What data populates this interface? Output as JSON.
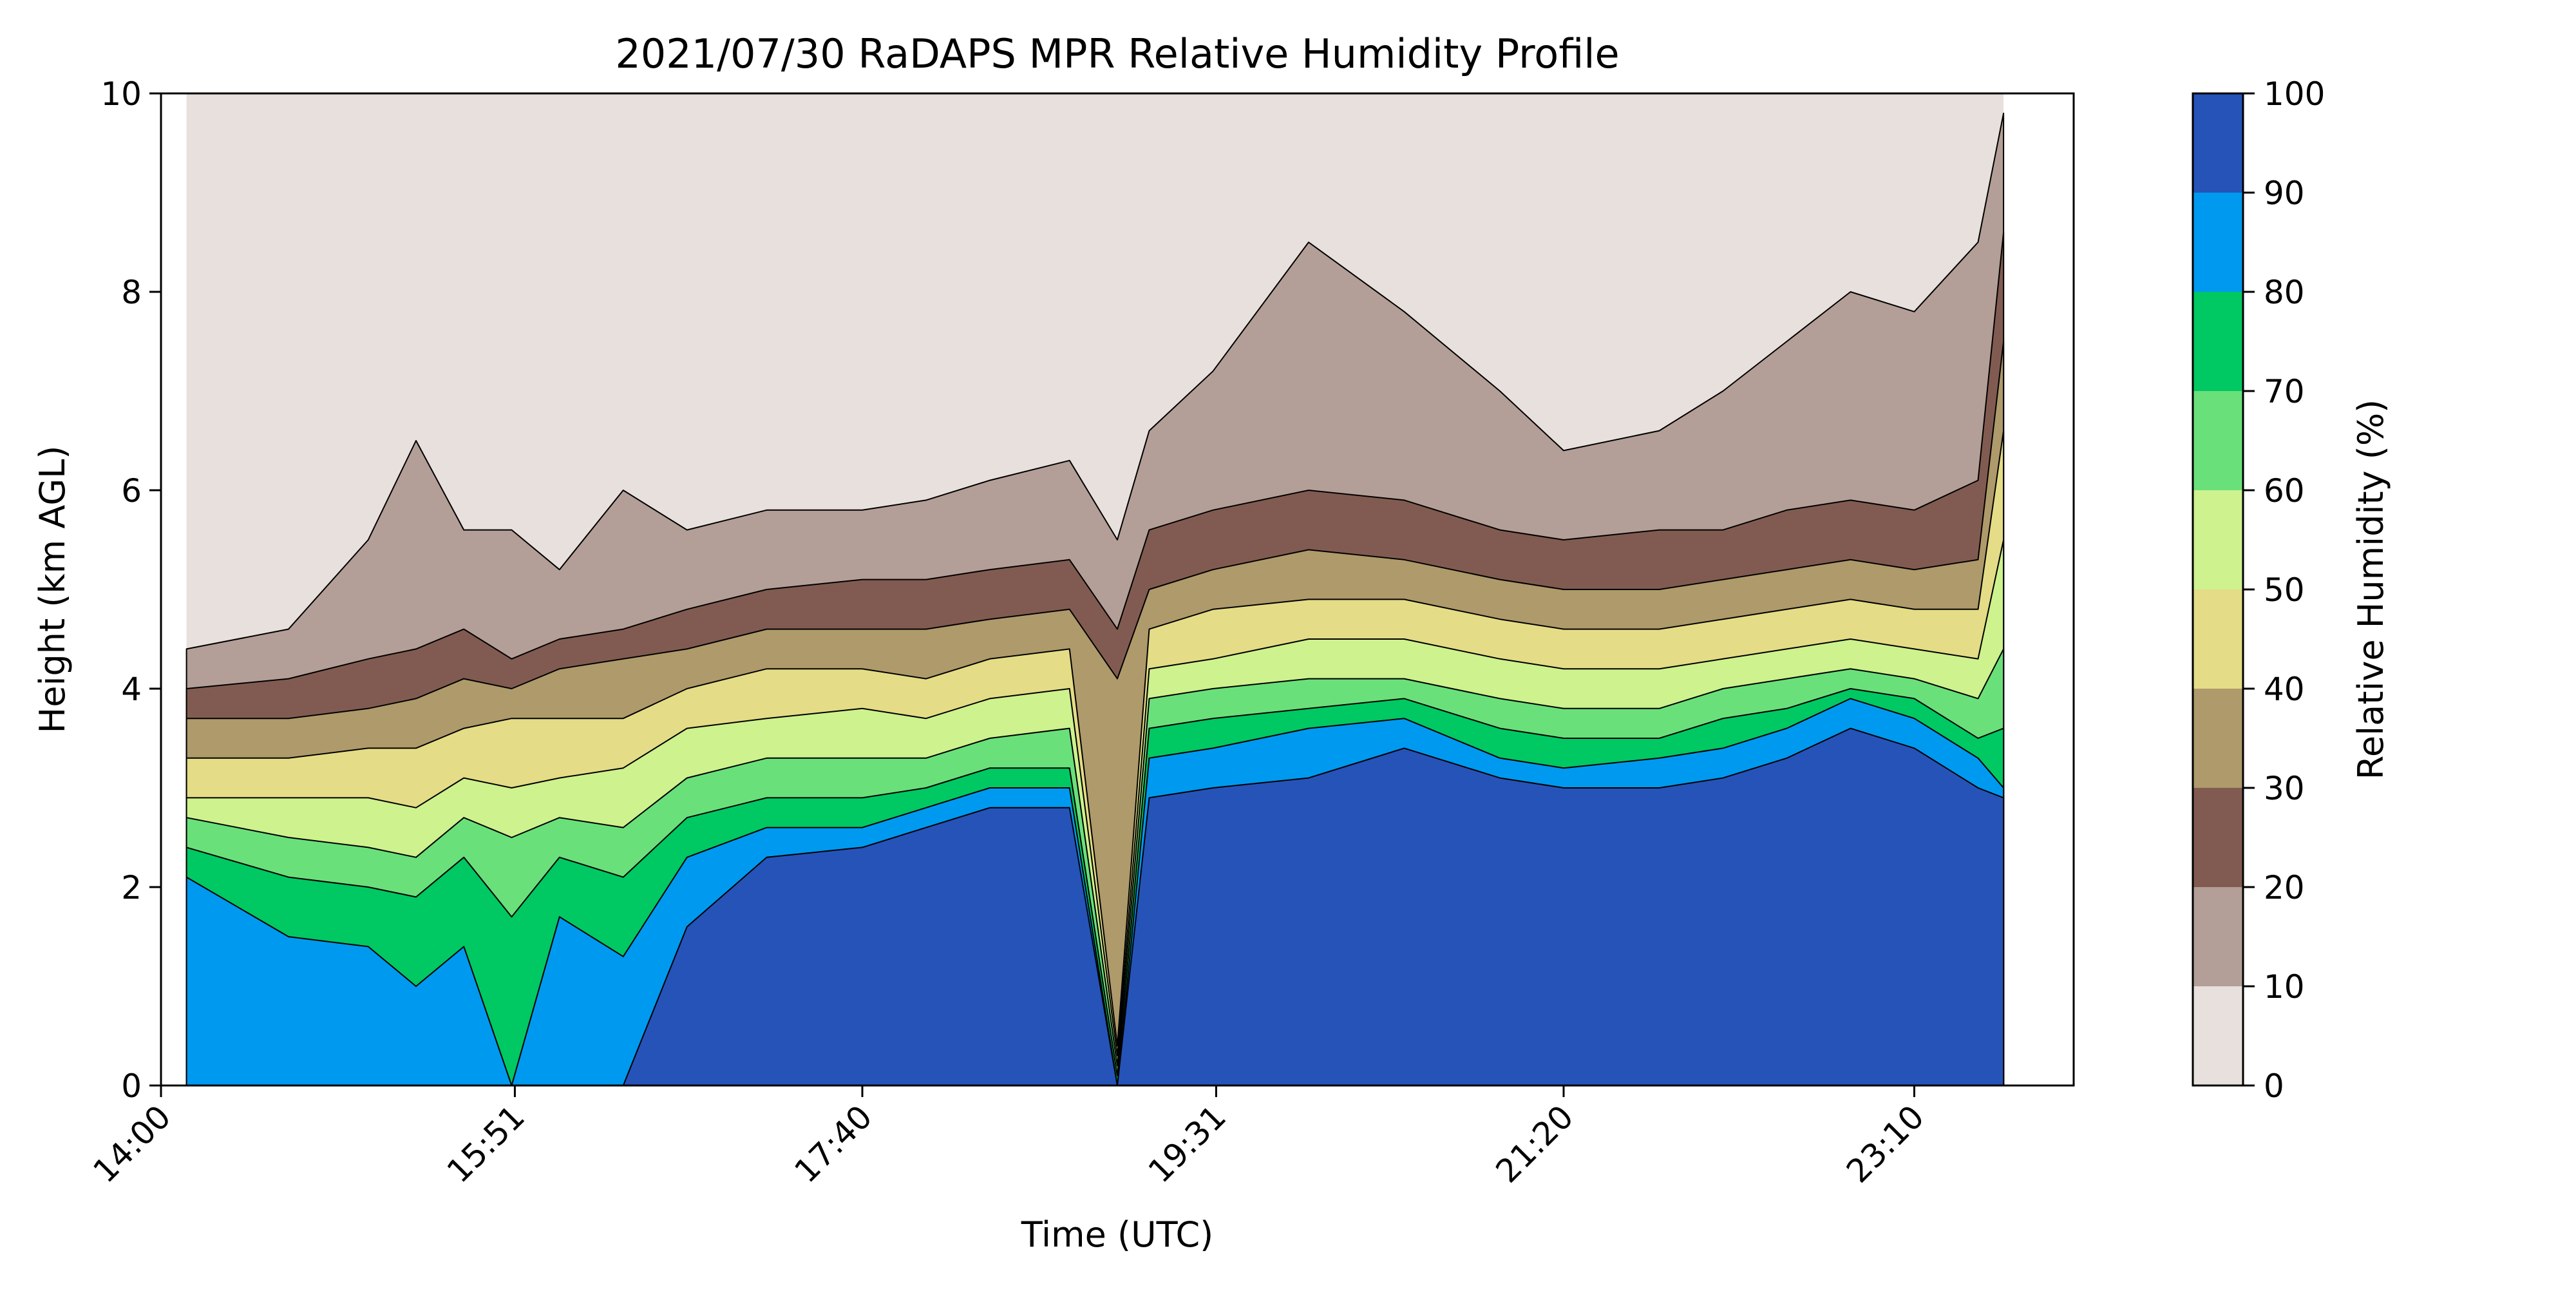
{
  "chart_data": {
    "type": "heatmap",
    "title": "2021/07/30 RaDAPS MPR Relative Humidity Profile",
    "xlabel": "Time (UTC)",
    "ylabel": "Height (km AGL)",
    "colorbar_label": "Relative Humidity (%)",
    "x_ticks": [
      "14:00",
      "15:51",
      "17:40",
      "19:31",
      "21:20",
      "23:10"
    ],
    "y_ticks": [
      "0",
      "2",
      "4",
      "6",
      "8",
      "10"
    ],
    "colorbar_ticks": [
      "0",
      "10",
      "20",
      "30",
      "40",
      "50",
      "60",
      "70",
      "80",
      "90",
      "100"
    ],
    "x_range": [
      "14:00",
      "24:00"
    ],
    "ylim": [
      0,
      10
    ],
    "clim": [
      0,
      100
    ],
    "levels": [
      0,
      10,
      20,
      30,
      40,
      50,
      60,
      70,
      80,
      90,
      100
    ],
    "level_colors": [
      "#e7e0dd",
      "#b39f97",
      "#815b51",
      "#ae9a6a",
      "#e4dc87",
      "#cdf28e",
      "#6ae07a",
      "#00c862",
      "#0099f0",
      "#2553b8"
    ],
    "contour_line_color": "#000000",
    "data_start_time": "14:08",
    "data_end_time": "23:38",
    "boundary_times": [
      "14:08",
      "14:40",
      "15:05",
      "15:20",
      "15:35",
      "15:50",
      "16:05",
      "16:25",
      "16:45",
      "17:10",
      "17:40",
      "18:00",
      "18:20",
      "18:45",
      "19:00",
      "19:10",
      "19:30",
      "20:00",
      "20:30",
      "21:00",
      "21:20",
      "21:50",
      "22:10",
      "22:30",
      "22:50",
      "23:10",
      "23:30",
      "23:38"
    ],
    "level_top_heights_km": {
      "90": [
        0.0,
        0.0,
        0.0,
        0.0,
        0.0,
        0.0,
        0.0,
        0.0,
        1.6,
        2.3,
        2.4,
        2.6,
        2.8,
        2.8,
        0.0,
        2.9,
        3.0,
        3.1,
        3.4,
        3.1,
        3.0,
        3.0,
        3.1,
        3.3,
        3.6,
        3.4,
        3.0,
        2.9
      ],
      "80": [
        2.1,
        1.5,
        1.4,
        1.0,
        1.4,
        0.0,
        1.7,
        1.3,
        2.3,
        2.6,
        2.6,
        2.8,
        3.0,
        3.0,
        0.0,
        3.3,
        3.4,
        3.6,
        3.7,
        3.3,
        3.2,
        3.3,
        3.4,
        3.6,
        3.9,
        3.7,
        3.3,
        3.0
      ],
      "70": [
        2.4,
        2.1,
        2.0,
        1.9,
        2.3,
        1.7,
        2.3,
        2.1,
        2.7,
        2.9,
        2.9,
        3.0,
        3.2,
        3.2,
        0.1,
        3.6,
        3.7,
        3.8,
        3.9,
        3.6,
        3.5,
        3.5,
        3.7,
        3.8,
        4.0,
        3.9,
        3.5,
        3.6
      ],
      "60": [
        2.7,
        2.5,
        2.4,
        2.3,
        2.7,
        2.5,
        2.7,
        2.6,
        3.1,
        3.3,
        3.3,
        3.3,
        3.5,
        3.6,
        0.2,
        3.9,
        4.0,
        4.1,
        4.1,
        3.9,
        3.8,
        3.8,
        4.0,
        4.1,
        4.2,
        4.1,
        3.9,
        4.4
      ],
      "50": [
        2.9,
        2.9,
        2.9,
        2.8,
        3.1,
        3.0,
        3.1,
        3.2,
        3.6,
        3.7,
        3.8,
        3.7,
        3.9,
        4.0,
        0.3,
        4.2,
        4.3,
        4.5,
        4.5,
        4.3,
        4.2,
        4.2,
        4.3,
        4.4,
        4.5,
        4.4,
        4.3,
        5.5
      ],
      "40": [
        3.3,
        3.3,
        3.4,
        3.4,
        3.6,
        3.7,
        3.7,
        3.7,
        4.0,
        4.2,
        4.2,
        4.1,
        4.3,
        4.4,
        0.4,
        4.6,
        4.8,
        4.9,
        4.9,
        4.7,
        4.6,
        4.6,
        4.7,
        4.8,
        4.9,
        4.8,
        4.8,
        6.6
      ],
      "30": [
        3.7,
        3.7,
        3.8,
        3.9,
        4.1,
        4.0,
        4.2,
        4.3,
        4.4,
        4.6,
        4.6,
        4.6,
        4.7,
        4.8,
        4.1,
        5.0,
        5.2,
        5.4,
        5.3,
        5.1,
        5.0,
        5.0,
        5.1,
        5.2,
        5.3,
        5.2,
        5.3,
        7.5
      ],
      "20": [
        4.0,
        4.1,
        4.3,
        4.4,
        4.6,
        4.3,
        4.5,
        4.6,
        4.8,
        5.0,
        5.1,
        5.1,
        5.2,
        5.3,
        4.6,
        5.6,
        5.8,
        6.0,
        5.9,
        5.6,
        5.5,
        5.6,
        5.6,
        5.8,
        5.9,
        5.8,
        6.1,
        8.6
      ],
      "10": [
        4.4,
        4.6,
        5.5,
        6.5,
        5.6,
        5.6,
        5.2,
        6.0,
        5.6,
        5.8,
        5.8,
        5.9,
        6.1,
        6.3,
        5.5,
        6.6,
        7.2,
        8.5,
        7.8,
        7.0,
        6.4,
        6.6,
        7.0,
        7.5,
        8.0,
        7.8,
        8.5,
        9.8
      ]
    }
  }
}
